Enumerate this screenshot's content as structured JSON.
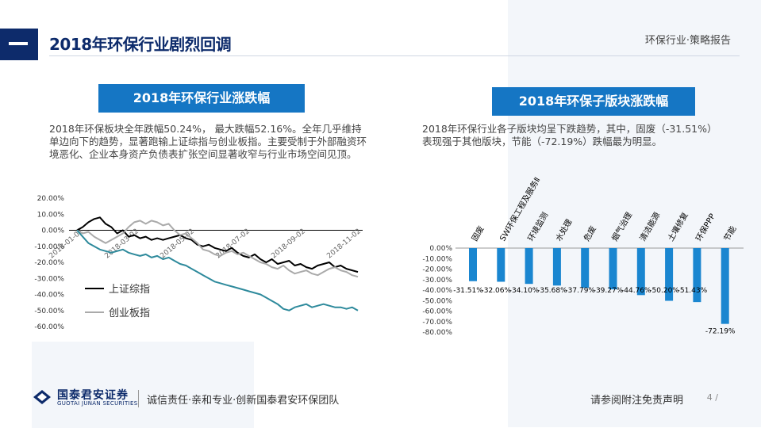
{
  "header": {
    "section_title": "2018年环保行业剧烈回调",
    "doc_tag": "环保行业·策略报告"
  },
  "left": {
    "box_title": "2018年环保行业涨跌幅",
    "paragraph": "2018年环保板块全年跌幅50.24%， 最大跌幅52.16%。全年几乎维持单边向下的趋势，显著跑输上证综指与创业板指。主要受制于外部融资环境恶化、企业本身资产负债表扩张空间显著收窄与行业市场空间见顶。"
  },
  "right": {
    "box_title": "2018年环保子版块涨跌幅",
    "paragraph": "2018年环保行业各子版块均呈下跌趋势，其中，固废（-31.51%）表现强于其他版块，节能（-72.19%）跌幅最为明显。"
  },
  "chart_data": [
    {
      "type": "line",
      "title": "",
      "ylim": [
        -0.6,
        0.2
      ],
      "yticks": [
        "20.00%",
        "10.00%",
        "0.00%",
        "-10.00%",
        "-20.00%",
        "-30.00%",
        "-40.00%",
        "-50.00%",
        "-60.00%"
      ],
      "xticks": [
        "2018-01-02",
        "2018-03-02",
        "2018-05-02",
        "2018-07-02",
        "2018-09-02",
        "2018-11-02"
      ],
      "legend": "bottom-left",
      "series": [
        {
          "name": "上证综指",
          "color": "#000000",
          "values": [
            0.0,
            0.02,
            0.05,
            0.07,
            0.08,
            0.04,
            0.02,
            -0.02,
            0.0,
            -0.04,
            -0.03,
            -0.05,
            -0.04,
            -0.06,
            -0.05,
            -0.06,
            -0.05,
            -0.04,
            -0.03,
            -0.05,
            -0.06,
            -0.09,
            -0.1,
            -0.09,
            -0.11,
            -0.12,
            -0.13,
            -0.11,
            -0.14,
            -0.16,
            -0.17,
            -0.15,
            -0.18,
            -0.2,
            -0.18,
            -0.21,
            -0.2,
            -0.19,
            -0.22,
            -0.21,
            -0.23,
            -0.24,
            -0.22,
            -0.21,
            -0.2,
            -0.23,
            -0.22,
            -0.24,
            -0.25,
            -0.26
          ]
        },
        {
          "name": "创业板指",
          "color": "#aaaaaa",
          "values": [
            0.0,
            -0.02,
            -0.01,
            -0.04,
            -0.06,
            -0.08,
            -0.06,
            -0.04,
            -0.02,
            0.02,
            0.05,
            0.06,
            0.04,
            0.06,
            0.05,
            0.03,
            0.04,
            0.0,
            -0.03,
            -0.02,
            -0.05,
            -0.08,
            -0.12,
            -0.13,
            -0.15,
            -0.16,
            -0.14,
            -0.13,
            -0.15,
            -0.14,
            -0.16,
            -0.18,
            -0.2,
            -0.21,
            -0.23,
            -0.24,
            -0.22,
            -0.25,
            -0.27,
            -0.26,
            -0.25,
            -0.27,
            -0.28,
            -0.26,
            -0.24,
            -0.23,
            -0.25,
            -0.26,
            -0.28,
            -0.29
          ]
        },
        {
          "name": "",
          "color": "#2e8a9c",
          "values": [
            0.0,
            -0.04,
            -0.08,
            -0.1,
            -0.12,
            -0.13,
            -0.14,
            -0.13,
            -0.12,
            -0.14,
            -0.15,
            -0.16,
            -0.15,
            -0.17,
            -0.16,
            -0.18,
            -0.17,
            -0.19,
            -0.21,
            -0.22,
            -0.24,
            -0.26,
            -0.28,
            -0.3,
            -0.32,
            -0.33,
            -0.34,
            -0.35,
            -0.36,
            -0.37,
            -0.38,
            -0.39,
            -0.4,
            -0.42,
            -0.44,
            -0.46,
            -0.49,
            -0.5,
            -0.48,
            -0.47,
            -0.46,
            -0.48,
            -0.47,
            -0.46,
            -0.47,
            -0.48,
            -0.48,
            -0.49,
            -0.48,
            -0.5
          ]
        }
      ]
    },
    {
      "type": "bar",
      "title": "",
      "ylim": [
        -0.8,
        0.0
      ],
      "yticks": [
        "0.00%",
        "-10.00%",
        "-20.00%",
        "-30.00%",
        "-40.00%",
        "-50.00%",
        "-60.00%",
        "-70.00%",
        "-80.00%"
      ],
      "categories": [
        "固废",
        "SW环保工程及服务Ⅱ",
        "环境监测",
        "水处理",
        "危废",
        "烟气治理",
        "清洁能源",
        "土壤修复",
        "环保PPP",
        "节能"
      ],
      "values": [
        -0.3151,
        -0.3206,
        -0.341,
        -0.3568,
        -0.3779,
        -0.3927,
        -0.4476,
        -0.502,
        -0.5143,
        -0.7219
      ],
      "data_labels": [
        "-31.51%",
        "-32.06%",
        "-34.10%",
        "-35.68%",
        "-37.79%",
        "-39.27%",
        "-44.76%",
        "-50.20%",
        "-51.43%",
        "-72.19%"
      ],
      "bar_color": "#1a86d0"
    }
  ],
  "footer": {
    "logo_cn": "国泰君安证券",
    "logo_en": "GUOTAI JUNAN SECURITIES",
    "slogan": "诚信责任·亲和专业·创新国泰君安环保团队",
    "disclaimer": "请参阅附注免责声明",
    "page": "4 /"
  },
  "colors": {
    "navy": "#0d2b6b",
    "title_box": "#1576c4",
    "bar": "#1a86d0",
    "env_line": "#2e8a9c",
    "sz_line": "#000000",
    "cyb_line": "#aaaaaa"
  }
}
